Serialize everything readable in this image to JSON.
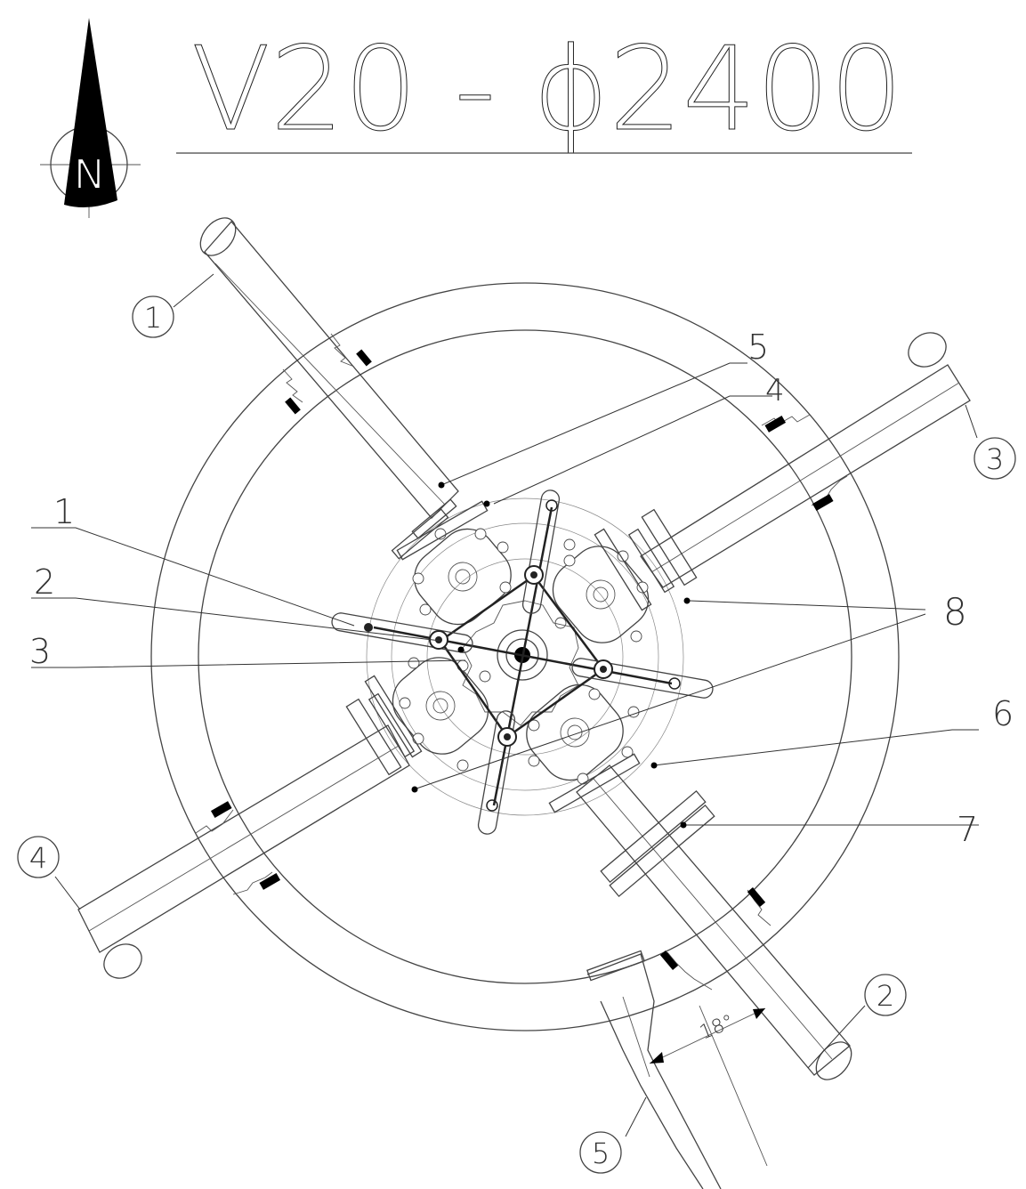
{
  "title": "V20 - ϕ2400",
  "north_label": "N",
  "pipe_labels": [
    "1",
    "2",
    "3",
    "4",
    "5"
  ],
  "component_labels": [
    "1",
    "2",
    "3",
    "4",
    "5",
    "6",
    "7",
    "8"
  ],
  "angle_label": "18°",
  "colors": {
    "line": "#444444",
    "fill": "#000000",
    "background": "#ffffff"
  }
}
